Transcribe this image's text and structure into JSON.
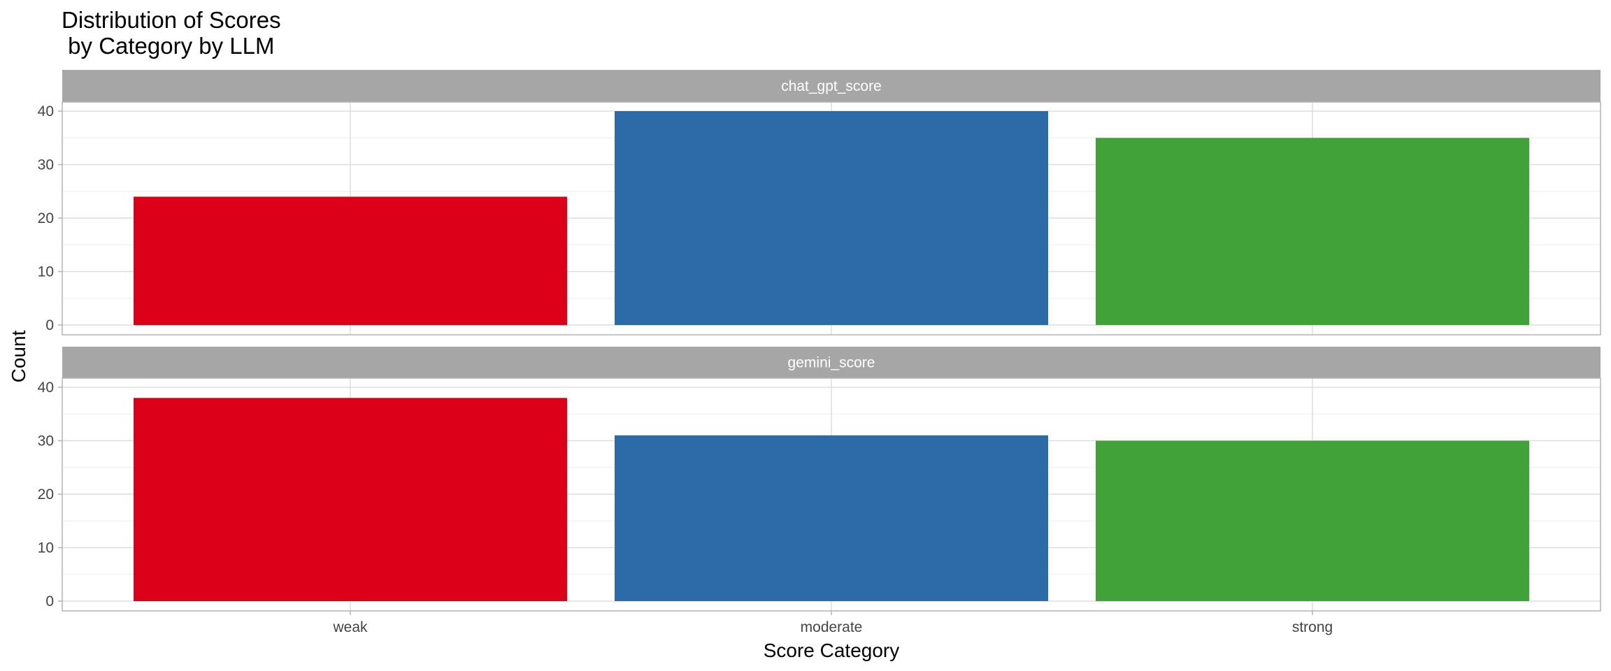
{
  "chart_data": {
    "type": "bar",
    "title_lines": [
      "Distribution of Scores",
      " by Category by LLM"
    ],
    "xlabel": "Score Category",
    "ylabel": "Count",
    "categories": [
      "weak",
      "moderate",
      "strong"
    ],
    "colors": [
      "#DC0018",
      "#2D6AA8",
      "#41A23A"
    ],
    "ylim": [
      0,
      42
    ],
    "yticks": [
      0,
      10,
      20,
      30,
      40
    ],
    "grid": true,
    "legend": "none",
    "facets": [
      {
        "name": "chat_gpt_score",
        "values": [
          24,
          40,
          35
        ]
      },
      {
        "name": "gemini_score",
        "values": [
          38,
          31,
          30
        ]
      }
    ]
  }
}
